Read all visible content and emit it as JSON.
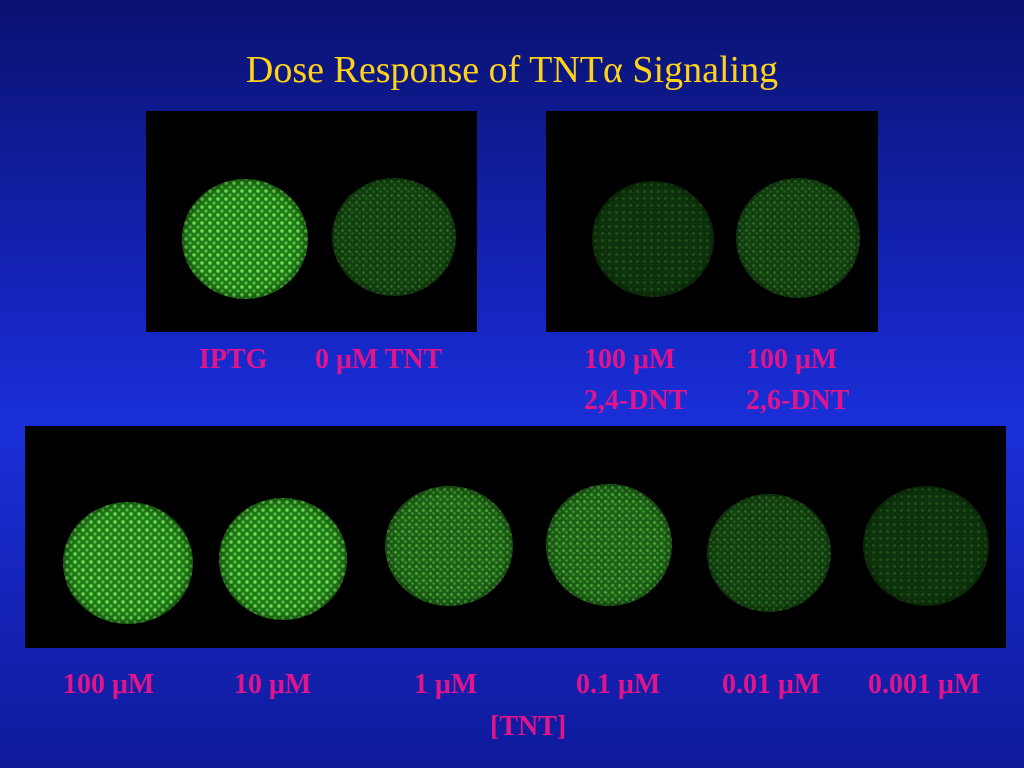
{
  "slide": {
    "title": "Dose Response of TNTα Signaling"
  },
  "top_left_panel": {
    "labels": {
      "iptg": "IPTG",
      "zero_tnt": "0 μM TNT"
    }
  },
  "top_right_panel": {
    "labels": {
      "dnt24_conc": "100 μM",
      "dnt24_name": "2,4-DNT",
      "dnt26_conc": "100 μM",
      "dnt26_name": "2,6-DNT"
    }
  },
  "bottom_panel": {
    "concentrations": [
      "100 μM",
      "10 μM",
      "1 μM",
      "0.1 μM",
      "0.01 μM",
      "0.001 μM"
    ],
    "axis_label": "[TNT]"
  },
  "colors": {
    "background": "#1a2fd8",
    "title": "#ffd21a",
    "label": "#e0158c",
    "plate_fluorescence": "#4aa236"
  }
}
